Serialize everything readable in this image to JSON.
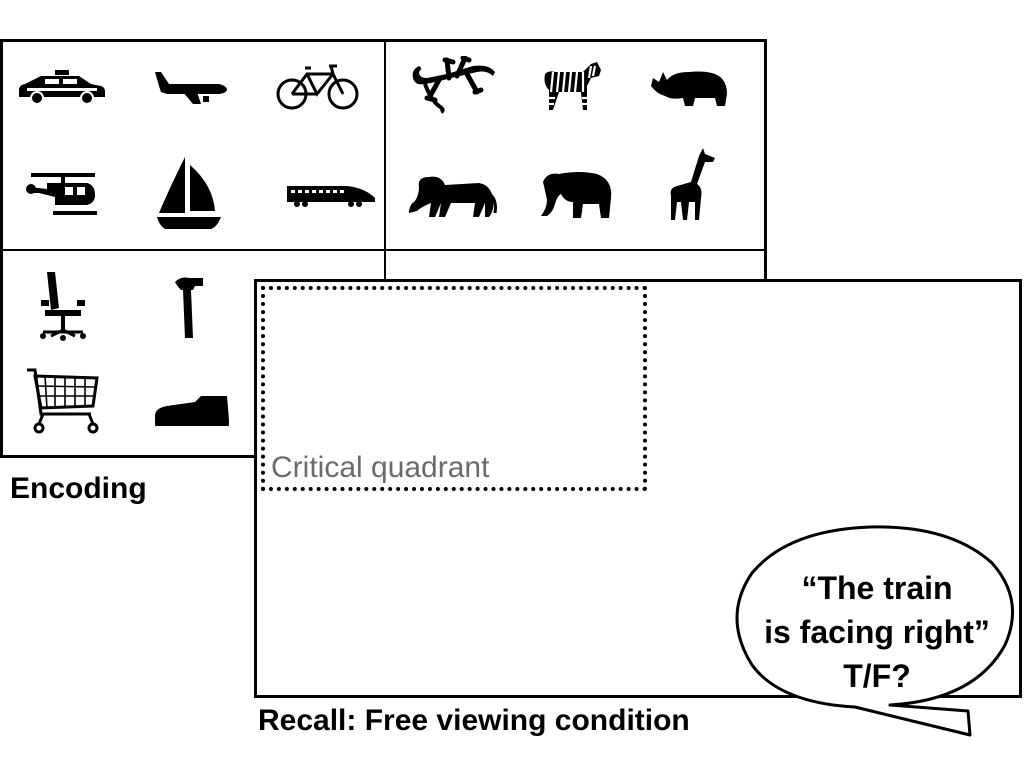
{
  "encoding": {
    "label": "Encoding"
  },
  "recall": {
    "label": "Recall: Free viewing condition",
    "critical_label": "Critical quadrant"
  },
  "question": {
    "line1": "“The train",
    "line2": "is facing right”",
    "line3": "T/F?"
  },
  "icons": {
    "vehicles": [
      "taxi-icon",
      "airplane-icon",
      "bicycle-icon",
      "helicopter-icon",
      "sailboat-icon",
      "train-icon"
    ],
    "animals": [
      "gecko-icon",
      "zebra-icon",
      "rhino-icon",
      "lion-icon",
      "elephant-icon",
      "giraffe-icon"
    ],
    "objects": [
      "office-chair-icon",
      "hammer-icon",
      "shopping-cart-icon",
      "shoe-icon"
    ]
  }
}
